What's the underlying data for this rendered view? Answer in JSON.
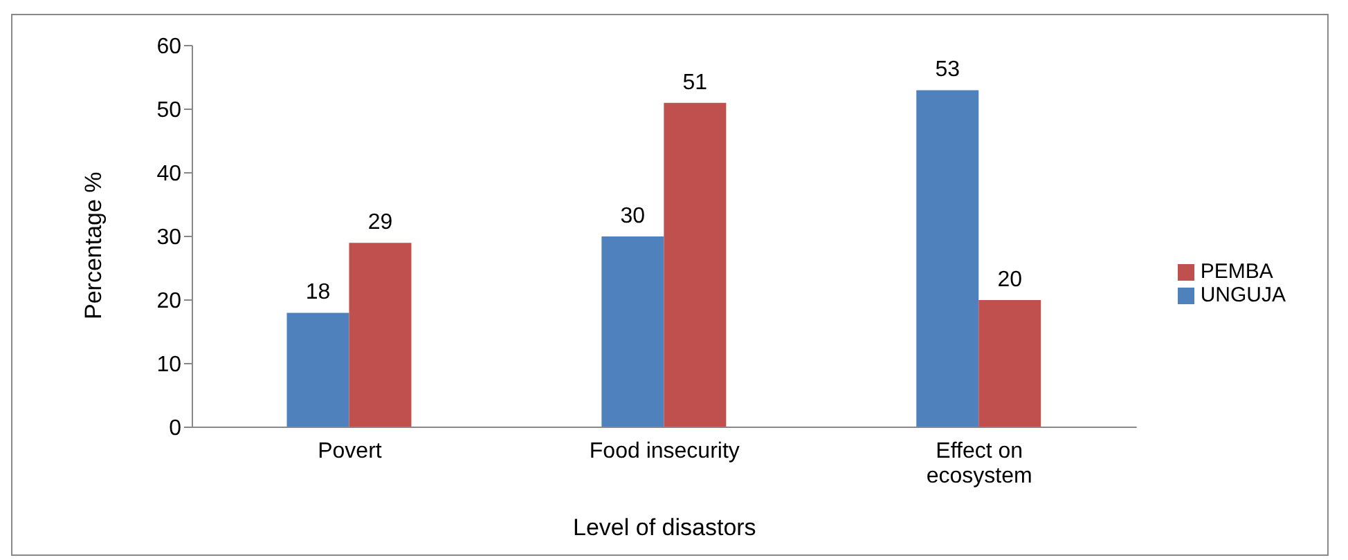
{
  "chart_data": {
    "type": "bar",
    "xlabel": "Level of disastors",
    "ylabel": "Percentage %",
    "categories": [
      "Povert",
      "Food insecurity",
      "Effect on ecosystem"
    ],
    "series": [
      {
        "name": "UNGUJA",
        "color": "#4f81bd",
        "values": [
          18,
          30,
          53
        ]
      },
      {
        "name": "PEMBA",
        "color": "#c0504d",
        "values": [
          29,
          51,
          20
        ]
      }
    ],
    "ylim": [
      0,
      60
    ],
    "yticks": [
      0,
      10,
      20,
      30,
      40,
      50,
      60
    ],
    "grid": false,
    "legend": "right",
    "data_labels": true
  }
}
